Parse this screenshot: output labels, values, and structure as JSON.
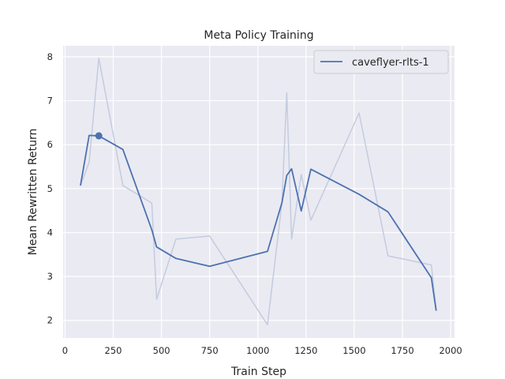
{
  "chart_data": {
    "type": "line",
    "title": "Meta Policy Training",
    "xlabel": "Train Step",
    "ylabel": "Mean Rewritten Return",
    "xlim": [
      -10,
      2020
    ],
    "ylim": [
      1.6,
      8.25
    ],
    "xticks": [
      0,
      250,
      500,
      750,
      1000,
      1250,
      1500,
      1750,
      2000
    ],
    "yticks": [
      2,
      3,
      4,
      5,
      6,
      7,
      8
    ],
    "grid": true,
    "legend_position": "top-right",
    "colors": {
      "background": "#eaeaf2",
      "grid": "#ffffff",
      "line": "#4c72b0",
      "raw_line": "#c4cbe0"
    },
    "series": [
      {
        "name": "caveflyer-rlts-1",
        "x": [
          80,
          125,
          175,
          300,
          450,
          475,
          575,
          750,
          1050,
          1125,
          1150,
          1175,
          1225,
          1275,
          1525,
          1675,
          1900,
          1925
        ],
        "raw": [
          5.07,
          5.6,
          7.97,
          5.07,
          4.67,
          2.48,
          3.85,
          3.92,
          1.9,
          4.68,
          7.18,
          3.85,
          5.32,
          4.28,
          6.72,
          3.47,
          3.26,
          2.22
        ],
        "smoothed": [
          5.07,
          6.21,
          6.2,
          5.89,
          4.06,
          3.67,
          3.41,
          3.23,
          3.57,
          4.68,
          5.3,
          5.45,
          4.49,
          5.44,
          4.87,
          4.47,
          2.97,
          2.22
        ]
      }
    ],
    "marker": {
      "x": 175,
      "y": 6.2
    }
  }
}
